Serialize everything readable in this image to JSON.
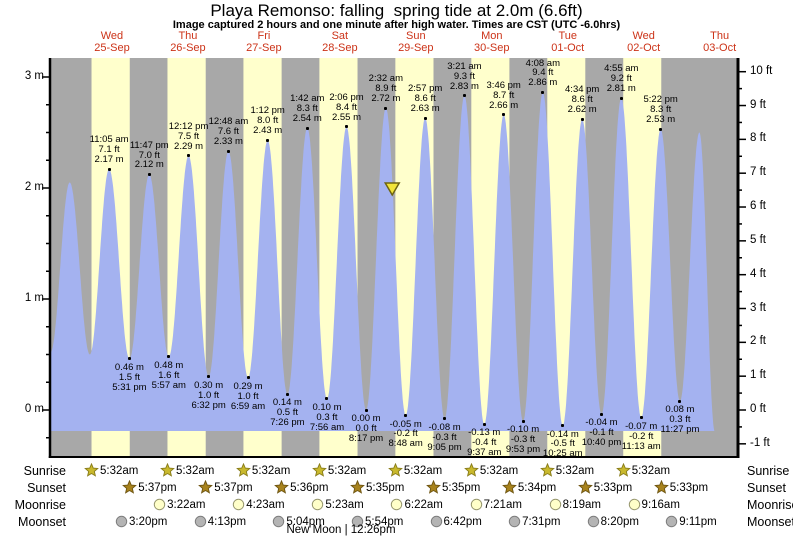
{
  "title": "Playa Remonso: falling  spring tide at 2.0m (6.6ft)",
  "subtitle": "Image captured 2 hours and one minute after high water. Times are CST (UTC -6.0hrs)",
  "colors": {
    "day_band": "#ffffcc",
    "night_band": "#a8a8a8",
    "water": "#a4b2f0",
    "date_text": "#cc3318",
    "axis": "#000000",
    "sunrise_star": "#c9b92d",
    "sunrise_star_edge": "#897d1b",
    "sunset_star": "#a8831d",
    "sunset_star_edge": "#6e5512",
    "moonrise_circle": "#ffffc9",
    "moonrise_circle_edge": "#97976e",
    "moonset_circle": "#b4b4b4",
    "moonset_circle_edge": "#7d7d7d",
    "marker_fill": "#f2e438",
    "marker_stroke": "#6e6410"
  },
  "days": [
    {
      "dow": "Wed",
      "date": "25-Sep"
    },
    {
      "dow": "Thu",
      "date": "26-Sep"
    },
    {
      "dow": "Fri",
      "date": "27-Sep"
    },
    {
      "dow": "Sat",
      "date": "28-Sep"
    },
    {
      "dow": "Sun",
      "date": "29-Sep"
    },
    {
      "dow": "Mon",
      "date": "30-Sep"
    },
    {
      "dow": "Tue",
      "date": "01-Oct"
    },
    {
      "dow": "Wed",
      "date": "02-Oct"
    },
    {
      "dow": "Thu",
      "date": "03-Oct"
    }
  ],
  "y_axis_left": {
    "unit": "m",
    "ticks": [
      {
        "v": 3,
        "label": "3 m"
      },
      {
        "v": 2,
        "label": "2 m"
      },
      {
        "v": 1,
        "label": "1 m"
      },
      {
        "v": 0,
        "label": "0 m"
      }
    ]
  },
  "y_axis_right": {
    "unit": "ft",
    "ticks": [
      {
        "v": 10,
        "label": "10 ft"
      },
      {
        "v": 9,
        "label": "9 ft"
      },
      {
        "v": 8,
        "label": "8 ft"
      },
      {
        "v": 7,
        "label": "7 ft"
      },
      {
        "v": 6,
        "label": "6 ft"
      },
      {
        "v": 5,
        "label": "5 ft"
      },
      {
        "v": 4,
        "label": "4 ft"
      },
      {
        "v": 3,
        "label": "3 ft"
      },
      {
        "v": 2,
        "label": "2 ft"
      },
      {
        "v": 1,
        "label": "1 ft"
      },
      {
        "v": 0,
        "label": "0 ft"
      },
      {
        "v": -1,
        "label": "-1 ft"
      }
    ]
  },
  "chart_data": {
    "type": "area",
    "title": "Playa Remonso tide curve",
    "x_span": "Tue 24-Sep ~16:00 to Thu 03-Oct (hours measured from Wed 25-Sep 00:00)",
    "ylim_m": [
      -0.42,
      3.17
    ],
    "ylim_ft": [
      -1,
      10
    ],
    "grid": false,
    "current_marker": {
      "t": 100.55,
      "level_m": 2.0,
      "note": "falling tide at 2.0m (6.6ft), 2h01m after 2:32 am high"
    },
    "tide_events": [
      {
        "t": -13.6,
        "m": 2.05,
        "type": "high",
        "annotated": false
      },
      {
        "t": -7.4,
        "m": 0.52,
        "type": "low",
        "annotated": false
      },
      {
        "t": -1.35,
        "m": 2.05,
        "type": "high",
        "annotated": false
      },
      {
        "t": 5.0,
        "m": 0.5,
        "type": "low",
        "annotated": false
      },
      {
        "t": 11.083,
        "m": 2.17,
        "type": "high",
        "annotated": true,
        "time": "11:05 am",
        "ft_label": "7.1 ft",
        "m_label": "2.17 m"
      },
      {
        "t": 17.517,
        "m": 0.46,
        "type": "low",
        "annotated": true,
        "time": "5:31 pm",
        "ft_label": "1.5 ft",
        "m_label": "0.46 m"
      },
      {
        "t": 23.783,
        "m": 2.12,
        "type": "high",
        "annotated": true,
        "time": "11:47 pm",
        "ft_label": "7.0 ft",
        "m_label": "2.12 m"
      },
      {
        "t": 29.95,
        "m": 0.48,
        "type": "low",
        "annotated": true,
        "time": "5:57 am",
        "ft_label": "1.6 ft",
        "m_label": "0.48 m"
      },
      {
        "t": 36.2,
        "m": 2.29,
        "type": "high",
        "annotated": true,
        "time": "12:12 pm",
        "ft_label": "7.5 ft",
        "m_label": "2.29 m"
      },
      {
        "t": 42.533,
        "m": 0.3,
        "type": "low",
        "annotated": true,
        "time": "6:32 pm",
        "ft_label": "1.0 ft",
        "m_label": "0.30 m"
      },
      {
        "t": 48.8,
        "m": 2.33,
        "type": "high",
        "annotated": true,
        "time": "12:48 am",
        "ft_label": "7.6 ft",
        "m_label": "2.33 m"
      },
      {
        "t": 54.983,
        "m": 0.29,
        "type": "low",
        "annotated": true,
        "time": "6:59 am",
        "ft_label": "1.0 ft",
        "m_label": "0.29 m"
      },
      {
        "t": 61.2,
        "m": 2.43,
        "type": "high",
        "annotated": true,
        "time": "1:12 pm",
        "ft_label": "8.0 ft",
        "m_label": "2.43 m"
      },
      {
        "t": 67.433,
        "m": 0.14,
        "type": "low",
        "annotated": true,
        "time": "7:26 pm",
        "ft_label": "0.5 ft",
        "m_label": "0.14 m"
      },
      {
        "t": 73.7,
        "m": 2.54,
        "type": "high",
        "annotated": true,
        "time": "1:42 am",
        "ft_label": "8.3 ft",
        "m_label": "2.54 m"
      },
      {
        "t": 79.933,
        "m": 0.1,
        "type": "low",
        "annotated": true,
        "time": "7:56 am",
        "ft_label": "0.3 ft",
        "m_label": "0.10 m"
      },
      {
        "t": 86.1,
        "m": 2.55,
        "type": "high",
        "annotated": true,
        "time": "2:06 pm",
        "ft_label": "8.4 ft",
        "m_label": "2.55 m"
      },
      {
        "t": 92.283,
        "m": 0.0,
        "type": "low",
        "annotated": true,
        "time": "8:17 pm",
        "ft_label": "0.0 ft",
        "m_label": "0.00 m"
      },
      {
        "t": 98.533,
        "m": 2.72,
        "type": "high",
        "annotated": true,
        "time": "2:32 am",
        "ft_label": "8.9 ft",
        "m_label": "2.72 m"
      },
      {
        "t": 104.8,
        "m": -0.05,
        "type": "low",
        "annotated": true,
        "time": "8:48 am",
        "ft_label": "-0.2 ft",
        "m_label": "-0.05 m"
      },
      {
        "t": 110.95,
        "m": 2.63,
        "type": "high",
        "annotated": true,
        "time": "2:57 pm",
        "ft_label": "8.6 ft",
        "m_label": "2.63 m"
      },
      {
        "t": 117.083,
        "m": -0.08,
        "type": "low",
        "annotated": true,
        "time": "9:05 pm",
        "ft_label": "-0.3 ft",
        "m_label": "-0.08 m"
      },
      {
        "t": 123.35,
        "m": 2.83,
        "type": "high",
        "annotated": true,
        "time": "3:21 am",
        "ft_label": "9.3 ft",
        "m_label": "2.83 m"
      },
      {
        "t": 129.617,
        "m": -0.13,
        "type": "low",
        "annotated": true,
        "time": "9:37 am",
        "ft_label": "-0.4 ft",
        "m_label": "-0.13 m"
      },
      {
        "t": 135.767,
        "m": 2.66,
        "type": "high",
        "annotated": true,
        "time": "3:46 pm",
        "ft_label": "8.7 ft",
        "m_label": "2.66 m"
      },
      {
        "t": 141.883,
        "m": -0.1,
        "type": "low",
        "annotated": true,
        "time": "9:53 pm",
        "ft_label": "-0.3 ft",
        "m_label": "-0.10 m"
      },
      {
        "t": 148.133,
        "m": 2.86,
        "type": "high",
        "annotated": true,
        "time": "4:08 am",
        "ft_label": "9.4 ft",
        "m_label": "2.86 m"
      },
      {
        "t": 154.417,
        "m": -0.14,
        "type": "low",
        "annotated": true,
        "time": "10:25 am",
        "ft_label": "-0.5 ft",
        "m_label": "-0.14 m"
      },
      {
        "t": 160.567,
        "m": 2.62,
        "type": "high",
        "annotated": true,
        "time": "4:34 pm",
        "ft_label": "8.6 ft",
        "m_label": "2.62 m"
      },
      {
        "t": 166.667,
        "m": -0.04,
        "type": "low",
        "annotated": true,
        "time": "10:40 pm",
        "ft_label": "-0.1 ft",
        "m_label": "-0.04 m"
      },
      {
        "t": 172.917,
        "m": 2.81,
        "type": "high",
        "annotated": true,
        "time": "4:55 am",
        "ft_label": "9.2 ft",
        "m_label": "2.81 m"
      },
      {
        "t": 179.217,
        "m": -0.07,
        "type": "low",
        "annotated": true,
        "time": "11:13 am",
        "ft_label": "-0.2 ft",
        "m_label": "-0.07 m"
      },
      {
        "t": 185.367,
        "m": 2.53,
        "type": "high",
        "annotated": true,
        "time": "5:22 pm",
        "ft_label": "8.3 ft",
        "m_label": "2.53 m"
      },
      {
        "t": 191.45,
        "m": 0.08,
        "type": "low",
        "annotated": true,
        "time": "11:27 pm",
        "ft_label": "0.3 ft",
        "m_label": "0.08 m"
      },
      {
        "t": 197.6,
        "m": 2.5,
        "type": "high",
        "annotated": false
      },
      {
        "t": 202.5,
        "m": -0.2,
        "type": "low",
        "annotated": false
      }
    ]
  },
  "astro": {
    "rows": [
      {
        "label": "Sunrise",
        "icon": "sunrise-star",
        "events": [
          {
            "day": 0,
            "time": "5:32am"
          },
          {
            "day": 1,
            "time": "5:32am"
          },
          {
            "day": 2,
            "time": "5:32am"
          },
          {
            "day": 3,
            "time": "5:32am"
          },
          {
            "day": 4,
            "time": "5:32am"
          },
          {
            "day": 5,
            "time": "5:32am"
          },
          {
            "day": 6,
            "time": "5:32am"
          },
          {
            "day": 7,
            "time": "5:32am"
          }
        ]
      },
      {
        "label": "Sunset",
        "icon": "sunset-star",
        "events": [
          {
            "day": 0,
            "time": "5:37pm"
          },
          {
            "day": 1,
            "time": "5:37pm"
          },
          {
            "day": 2,
            "time": "5:36pm"
          },
          {
            "day": 3,
            "time": "5:35pm"
          },
          {
            "day": 4,
            "time": "5:35pm"
          },
          {
            "day": 5,
            "time": "5:34pm"
          },
          {
            "day": 6,
            "time": "5:33pm"
          },
          {
            "day": 7,
            "time": "5:33pm"
          }
        ]
      },
      {
        "label": "Moonrise",
        "icon": "moonrise-circle",
        "events": [
          {
            "day": 1,
            "time": "3:22am"
          },
          {
            "day": 2,
            "time": "4:23am"
          },
          {
            "day": 3,
            "time": "5:23am"
          },
          {
            "day": 4,
            "time": "6:22am"
          },
          {
            "day": 5,
            "time": "7:21am"
          },
          {
            "day": 6,
            "time": "8:19am"
          },
          {
            "day": 7,
            "time": "9:16am"
          }
        ]
      },
      {
        "label": "Moonset",
        "icon": "moonset-circle",
        "events": [
          {
            "day": 0,
            "time": "3:20pm"
          },
          {
            "day": 1,
            "time": "4:13pm"
          },
          {
            "day": 2,
            "time": "5:04pm"
          },
          {
            "day": 3,
            "time": "5:54pm"
          },
          {
            "day": 4,
            "time": "6:42pm"
          },
          {
            "day": 5,
            "time": "7:31pm"
          },
          {
            "day": 6,
            "time": "8:20pm"
          },
          {
            "day": 7,
            "time": "9:11pm"
          }
        ]
      }
    ],
    "new_moon_text": "New Moon | 12:26pm"
  }
}
